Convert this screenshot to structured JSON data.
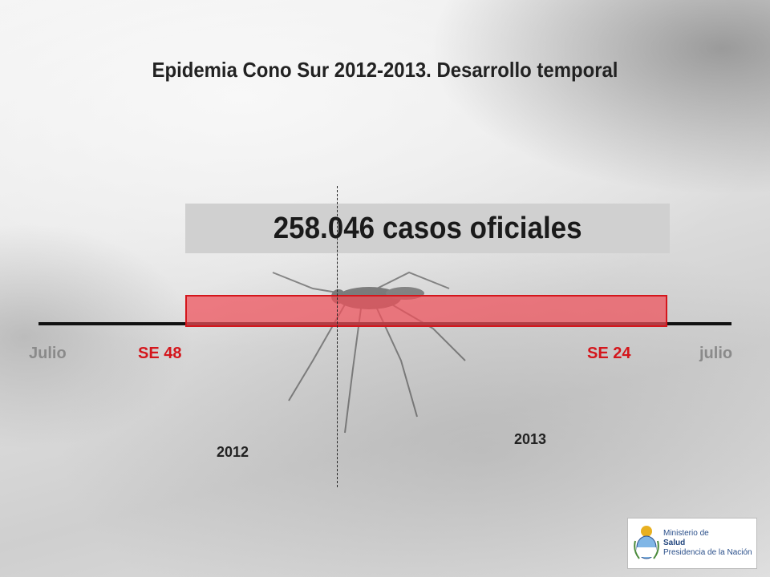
{
  "title": "Epidemia Cono Sur 2012-2013. Desarrollo temporal",
  "cases_label": "258.046 casos oficiales",
  "timeline": {
    "start_label": "Julio",
    "epi_start_label": "SE 48",
    "epi_end_label": "SE 24",
    "end_label": "julio",
    "year_left": "2012",
    "year_right": "2013"
  },
  "logo": {
    "line1": "Ministerio de",
    "line2": "Salud",
    "line3": "Presidencia de la Nación"
  },
  "colors": {
    "epidemic_bar": "#f0505a",
    "epidemic_border": "#d4161c",
    "epi_labels": "#d4161c",
    "month_labels": "#8a8a8a"
  }
}
